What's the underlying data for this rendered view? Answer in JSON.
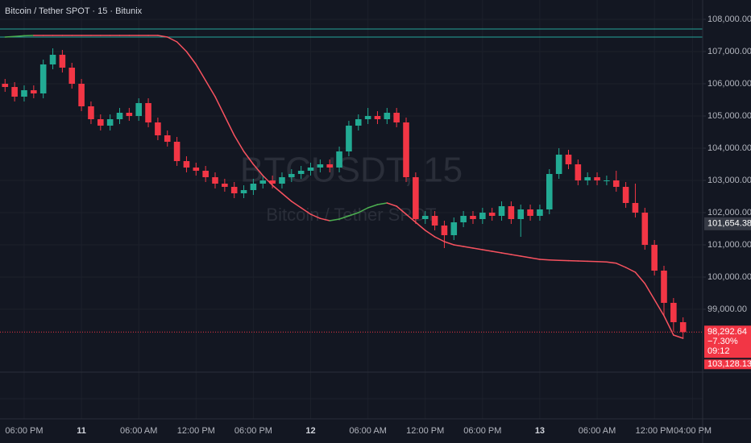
{
  "chart_data": {
    "type": "candlestick",
    "title": "Bitcoin / Tether SPOT · 15 · Bitunix",
    "watermark": "BTCUSDT, 15",
    "watermark_subtitle": "Bitcoin / Tether SPOT",
    "x": [
      -2,
      -1,
      0,
      1,
      2,
      3,
      4,
      5,
      6,
      7,
      8,
      9,
      10,
      11,
      12,
      13,
      14,
      15,
      16,
      17,
      18,
      19,
      20,
      21,
      22,
      23,
      24,
      25,
      26,
      27,
      28,
      29,
      30,
      31,
      32,
      33,
      34,
      35,
      36,
      37,
      38,
      39,
      40,
      41,
      42,
      43,
      44,
      45,
      46,
      47,
      48,
      49,
      50,
      51,
      52,
      53,
      54,
      55,
      56,
      57,
      58,
      59,
      60,
      61,
      62,
      63,
      64,
      65,
      66,
      67,
      68,
      69
    ],
    "xlim": [
      -2.53,
      71.05
    ],
    "xticks": [
      {
        "value": 0,
        "label": "06:00 PM"
      },
      {
        "value": 6,
        "label": "11"
      },
      {
        "value": 12,
        "label": "06:00 AM"
      },
      {
        "value": 18,
        "label": "12:00 PM"
      },
      {
        "value": 24,
        "label": "06:00 PM"
      },
      {
        "value": 30,
        "label": "12"
      },
      {
        "value": 36,
        "label": "06:00 AM"
      },
      {
        "value": 42,
        "label": "12:00 PM"
      },
      {
        "value": 48,
        "label": "06:00 PM"
      },
      {
        "value": 54,
        "label": "13"
      },
      {
        "value": 60,
        "label": "06:00 AM"
      },
      {
        "value": 66,
        "label": "12:00 PM"
      },
      {
        "value": 70,
        "label": "04:00 PM"
      }
    ],
    "ylim": [
      97050,
      108600
    ],
    "yticks": [
      {
        "value": 99000,
        "label": "99,000.00"
      },
      {
        "value": 100000,
        "label": "100,000.00"
      },
      {
        "value": 101000,
        "label": "101,000.00"
      },
      {
        "value": 102000,
        "label": "102,000.00"
      },
      {
        "value": 103000,
        "label": "103,000.00"
      },
      {
        "value": 104000,
        "label": "104,000.00"
      },
      {
        "value": 105000,
        "label": "105,000.00"
      },
      {
        "value": 106000,
        "label": "106,000.00"
      },
      {
        "value": 107000,
        "label": "107,000.00"
      },
      {
        "value": 108000,
        "label": "108,000.00"
      }
    ],
    "grid": true,
    "series": [
      {
        "type": "candlestick",
        "up_color": "#22ab94",
        "down_color": "#f23645",
        "open": [
          106000,
          105900,
          105600,
          105800,
          105700,
          106600,
          106900,
          106500,
          106000,
          105300,
          104900,
          104700,
          104900,
          105100,
          105000,
          105400,
          104800,
          104400,
          104200,
          103600,
          103400,
          103300,
          103100,
          102900,
          102800,
          102600,
          102700,
          102900,
          103000,
          102900,
          103100,
          103200,
          103300,
          103400,
          103500,
          103400,
          103900,
          104700,
          104900,
          105000,
          104900,
          105100,
          104800,
          103100,
          101800,
          101900,
          101600,
          101300,
          101700,
          101900,
          101800,
          102000,
          101900,
          102200,
          101800,
          102100,
          101900,
          102100,
          103200,
          103800,
          103500,
          103000,
          103100,
          103000,
          103000,
          102800,
          102300,
          102000,
          101000,
          100200,
          99200,
          98600
        ],
        "high": [
          106150,
          106050,
          105950,
          105950,
          106750,
          107100,
          107050,
          106650,
          106150,
          105450,
          105050,
          105050,
          105250,
          105250,
          105550,
          105550,
          104950,
          104550,
          104350,
          103750,
          103550,
          103450,
          103250,
          103050,
          102950,
          102850,
          103050,
          103150,
          103150,
          103250,
          103350,
          103450,
          103550,
          103650,
          103650,
          104050,
          104850,
          105050,
          105250,
          105150,
          105250,
          105250,
          104950,
          103250,
          102050,
          102050,
          101750,
          101850,
          102050,
          102050,
          102150,
          102150,
          102350,
          102350,
          102250,
          102250,
          102250,
          103350,
          104000,
          103950,
          103650,
          103250,
          103250,
          103150,
          103300,
          102950,
          102900,
          102150,
          101150,
          100350,
          99350,
          98750
        ],
        "low": [
          105750,
          105450,
          105450,
          105550,
          105550,
          106450,
          106350,
          105850,
          105150,
          104750,
          104550,
          104550,
          104750,
          104850,
          104850,
          104650,
          104250,
          104050,
          103450,
          103250,
          103150,
          102950,
          102750,
          102650,
          102450,
          102450,
          102550,
          102750,
          102750,
          102750,
          102950,
          103050,
          103150,
          103250,
          103250,
          103250,
          103750,
          104550,
          104750,
          104750,
          104750,
          104650,
          102950,
          101650,
          101650,
          101450,
          100900,
          101150,
          101550,
          101650,
          101650,
          101750,
          101750,
          101650,
          101250,
          101750,
          101750,
          101950,
          103050,
          103350,
          102850,
          102850,
          102850,
          102850,
          102650,
          102150,
          101850,
          100850,
          100050,
          98800,
          98300,
          98100
        ],
        "close": [
          105900,
          105600,
          105800,
          105700,
          106600,
          106900,
          106500,
          106000,
          105300,
          104900,
          104700,
          104900,
          105100,
          105000,
          105400,
          104800,
          104400,
          104200,
          103600,
          103400,
          103300,
          103100,
          102900,
          102800,
          102600,
          102700,
          102900,
          103000,
          102900,
          103100,
          103200,
          103300,
          103400,
          103500,
          103400,
          103900,
          104700,
          104900,
          105000,
          104900,
          105100,
          104800,
          103100,
          101800,
          101900,
          101600,
          101300,
          101700,
          101900,
          101800,
          102000,
          101900,
          102200,
          101800,
          102100,
          101900,
          102100,
          103200,
          103800,
          103500,
          103000,
          103100,
          103000,
          103000,
          102800,
          102300,
          102000,
          101000,
          100200,
          99200,
          98600,
          98292.64
        ]
      },
      {
        "type": "line",
        "up_color": "#4caf50",
        "down_color": "#f7525f",
        "values": [
          107450,
          107470,
          107490,
          107500,
          107500,
          107500,
          107500,
          107500,
          107500,
          107500,
          107500,
          107500,
          107500,
          107500,
          107500,
          107500,
          107500,
          107450,
          107300,
          107000,
          106600,
          106100,
          105600,
          105000,
          104400,
          103900,
          103500,
          103150,
          102850,
          102600,
          102350,
          102150,
          101950,
          101820,
          101750,
          101800,
          101900,
          102000,
          102150,
          102250,
          102300,
          102200,
          101950,
          101700,
          101450,
          101250,
          101100,
          101000,
          100950,
          100900,
          100850,
          100800,
          100750,
          100700,
          100650,
          100600,
          100550,
          100530,
          100520,
          100510,
          100500,
          100490,
          100480,
          100470,
          100430,
          100300,
          100150,
          99800,
          99300,
          98800,
          98200,
          98100
        ]
      }
    ],
    "hlines": [
      {
        "value": 107700,
        "color": "#26a69a"
      },
      {
        "value": 107450,
        "color": "#26a69a"
      }
    ],
    "price_tags": [
      {
        "value": 101654.38,
        "label": "101,654.38"
      }
    ],
    "last_price": {
      "value": 98292.64,
      "label": "98,292.64",
      "change": "−7.30%",
      "countdown": "09:12",
      "extra": "103,128.13",
      "color": "#f23645"
    }
  }
}
